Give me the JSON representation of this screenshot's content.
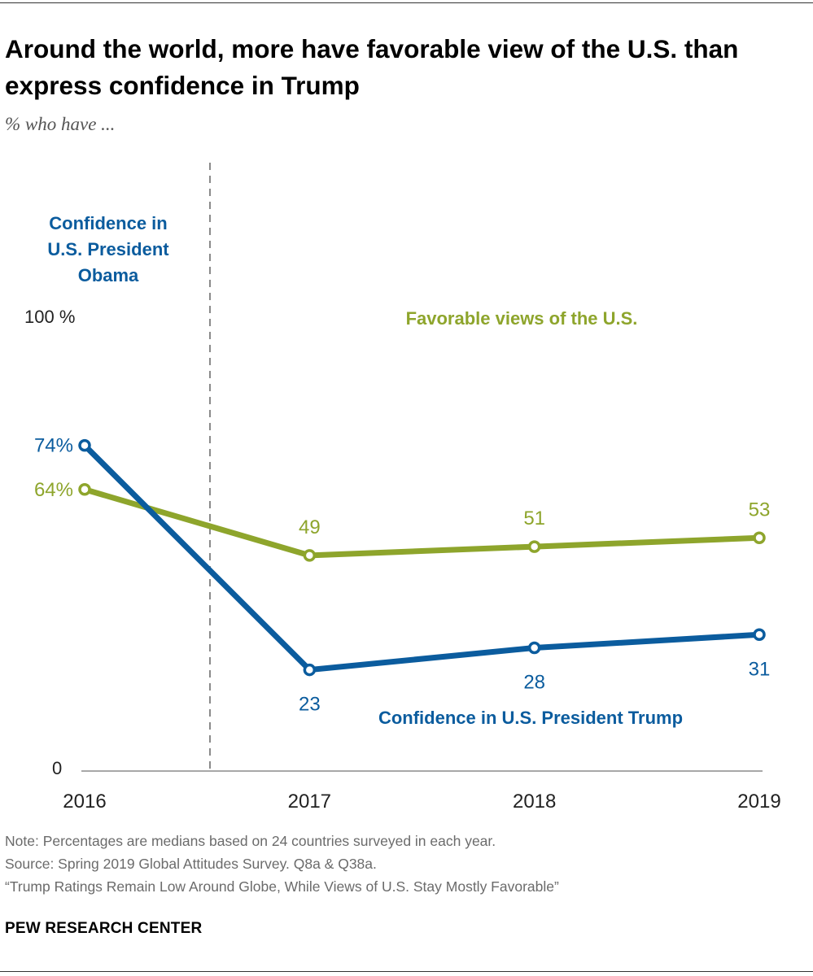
{
  "header": {
    "title": "Around the world, more have favorable view of the U.S. than express confidence in Trump",
    "subtitle": "% who have ..."
  },
  "chart_data": {
    "type": "line",
    "categories": [
      "2016",
      "2017",
      "2018",
      "2019"
    ],
    "x": [
      2016,
      2017,
      2018,
      2019
    ],
    "ylim": [
      0,
      100
    ],
    "y_tick_labels": [
      {
        "value": 0,
        "label": "0"
      },
      {
        "value": 100,
        "label": "100 %"
      }
    ],
    "grid": false,
    "divider_after_x": 2016,
    "series": [
      {
        "key": "favorable",
        "name": "Favorable views of the U.S.",
        "color": "#8ea52c",
        "values": [
          64,
          49,
          51,
          53
        ],
        "value_labels": [
          "64%",
          "49",
          "51",
          "53"
        ]
      },
      {
        "key": "confidence",
        "name": "Confidence in U.S. President Trump",
        "color": "#0b5c9e",
        "values": [
          74,
          23,
          28,
          31
        ],
        "value_labels": [
          "74%",
          "23",
          "28",
          "31"
        ]
      }
    ],
    "annotations": {
      "obama": [
        "Confidence in",
        "U.S. President",
        "Obama"
      ]
    }
  },
  "footer": {
    "note": "Note: Percentages are medians based on 24 countries surveyed in each year.",
    "source": "Source: Spring 2019 Global Attitudes Survey. Q8a & Q38a.",
    "report": "“Trump Ratings Remain Low Around Globe, While Views of U.S. Stay Mostly Favorable”",
    "brand": "PEW RESEARCH CENTER"
  }
}
